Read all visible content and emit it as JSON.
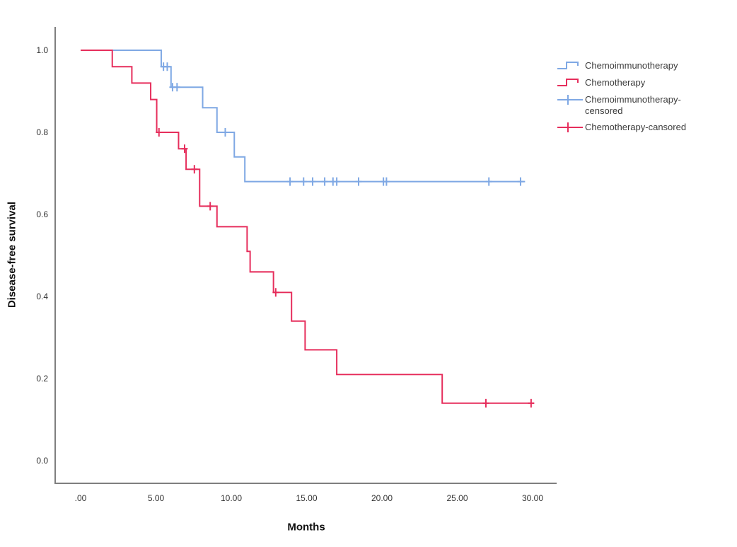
{
  "chart_data": {
    "type": "line",
    "subtype": "kaplan_meier_step_survival",
    "title": "",
    "xlabel": "Months",
    "ylabel": "Disease-free survival",
    "grid": false,
    "legend_position": "right",
    "xticks": [
      {
        "label": ".00",
        "value": 0
      },
      {
        "label": "5.00",
        "value": 5
      },
      {
        "label": "10.00",
        "value": 10
      },
      {
        "label": "15.00",
        "value": 15
      },
      {
        "label": "20.00",
        "value": 20
      },
      {
        "label": "25.00",
        "value": 25
      },
      {
        "label": "30.00",
        "value": 30
      }
    ],
    "yticks": [
      {
        "label": "0.0",
        "value": 0.0
      },
      {
        "label": "0.2",
        "value": 0.2
      },
      {
        "label": "0.4",
        "value": 0.4
      },
      {
        "label": "0.6",
        "value": 0.6
      },
      {
        "label": "0.8",
        "value": 0.8
      },
      {
        "label": "1.0",
        "value": 1.0
      }
    ],
    "xlim": [
      -1.7,
      31.6
    ],
    "ylim": [
      -0.055,
      1.11
    ],
    "series": [
      {
        "name": "Chemoimmunotherapy",
        "color": "#7FA8E4",
        "steps": [
          [
            0,
            1.0
          ],
          [
            5.35,
            0.96
          ],
          [
            6.0,
            0.91
          ],
          [
            8.1,
            0.86
          ],
          [
            9.05,
            0.8
          ],
          [
            10.2,
            0.74
          ],
          [
            10.9,
            0.68
          ]
        ],
        "end_x": 29.5,
        "censored": [
          [
            5.5,
            0.96
          ],
          [
            5.75,
            0.96
          ],
          [
            6.1,
            0.91
          ],
          [
            6.4,
            0.91
          ],
          [
            9.6,
            0.8
          ],
          [
            13.9,
            0.68
          ],
          [
            14.8,
            0.68
          ],
          [
            15.4,
            0.68
          ],
          [
            16.2,
            0.68
          ],
          [
            16.75,
            0.68
          ],
          [
            17.0,
            0.68
          ],
          [
            18.45,
            0.68
          ],
          [
            20.1,
            0.68
          ],
          [
            20.3,
            0.68
          ],
          [
            27.1,
            0.68
          ],
          [
            29.2,
            0.68
          ]
        ]
      },
      {
        "name": "Chemotherapy",
        "color": "#E62E5C",
        "steps": [
          [
            0,
            1.0
          ],
          [
            2.1,
            0.96
          ],
          [
            3.4,
            0.92
          ],
          [
            4.65,
            0.88
          ],
          [
            5.05,
            0.8
          ],
          [
            6.5,
            0.76
          ],
          [
            7.0,
            0.71
          ],
          [
            7.9,
            0.62
          ],
          [
            9.05,
            0.57
          ],
          [
            11.05,
            0.51
          ],
          [
            11.25,
            0.46
          ],
          [
            12.8,
            0.41
          ],
          [
            14.0,
            0.34
          ],
          [
            14.9,
            0.27
          ],
          [
            17.0,
            0.21
          ],
          [
            24.0,
            0.14
          ]
        ],
        "end_x": 30.1,
        "censored": [
          [
            5.2,
            0.8
          ],
          [
            6.9,
            0.76
          ],
          [
            7.55,
            0.71
          ],
          [
            8.6,
            0.62
          ],
          [
            12.95,
            0.41
          ],
          [
            26.9,
            0.14
          ],
          [
            29.9,
            0.14
          ]
        ]
      }
    ],
    "legend_entries": [
      {
        "label": "Chemoimmunotherapy",
        "marker": "step",
        "color": "#7FA8E4"
      },
      {
        "label": "Chemotherapy",
        "marker": "step",
        "color": "#E62E5C"
      },
      {
        "label": "Chemoimmunotherapy-censored",
        "marker": "plus",
        "color": "#7FA8E4"
      },
      {
        "label": "Chemotherapy-cansored",
        "marker": "plus",
        "color": "#E62E5C"
      }
    ],
    "axis_color": "#7F7F7F"
  }
}
